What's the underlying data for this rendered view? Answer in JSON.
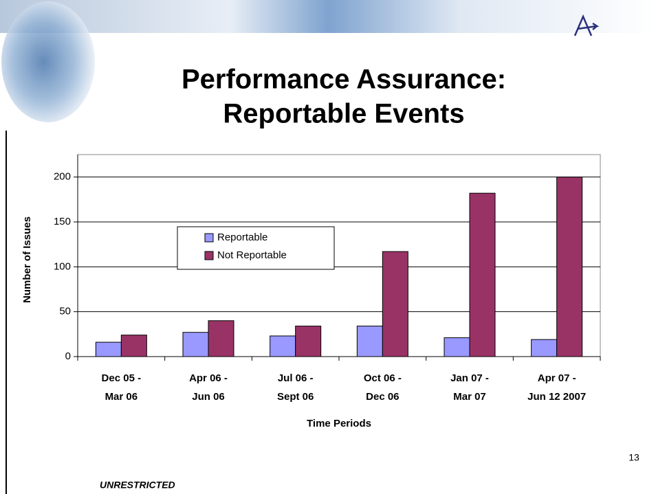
{
  "chart_data": {
    "type": "bar",
    "title": [
      "Performance Assurance:",
      "Reportable Events"
    ],
    "categories": [
      [
        "Dec 05 -",
        "Mar 06"
      ],
      [
        "Apr 06 -",
        "Jun 06"
      ],
      [
        "Jul 06 -",
        "Sept 06"
      ],
      [
        "Oct 06 -",
        "Dec 06"
      ],
      [
        "Jan 07 -",
        "Mar 07"
      ],
      [
        "Apr 07 -",
        "Jun 12 2007"
      ]
    ],
    "series": [
      {
        "name": "Reportable",
        "color": "#9999ff",
        "values": [
          16,
          27,
          23,
          34,
          21,
          19
        ]
      },
      {
        "name": "Not Reportable",
        "color": "#993366",
        "values": [
          24,
          40,
          34,
          117,
          182,
          200
        ]
      }
    ],
    "x_label": "Time Periods",
    "y_label": "Number of Issues",
    "ylim": [
      0,
      225
    ],
    "yticks": [
      0,
      50,
      100,
      150,
      200
    ],
    "grid": true,
    "legend_position": "center-left"
  },
  "footer": "UNRESTRICTED",
  "page_number": "13"
}
